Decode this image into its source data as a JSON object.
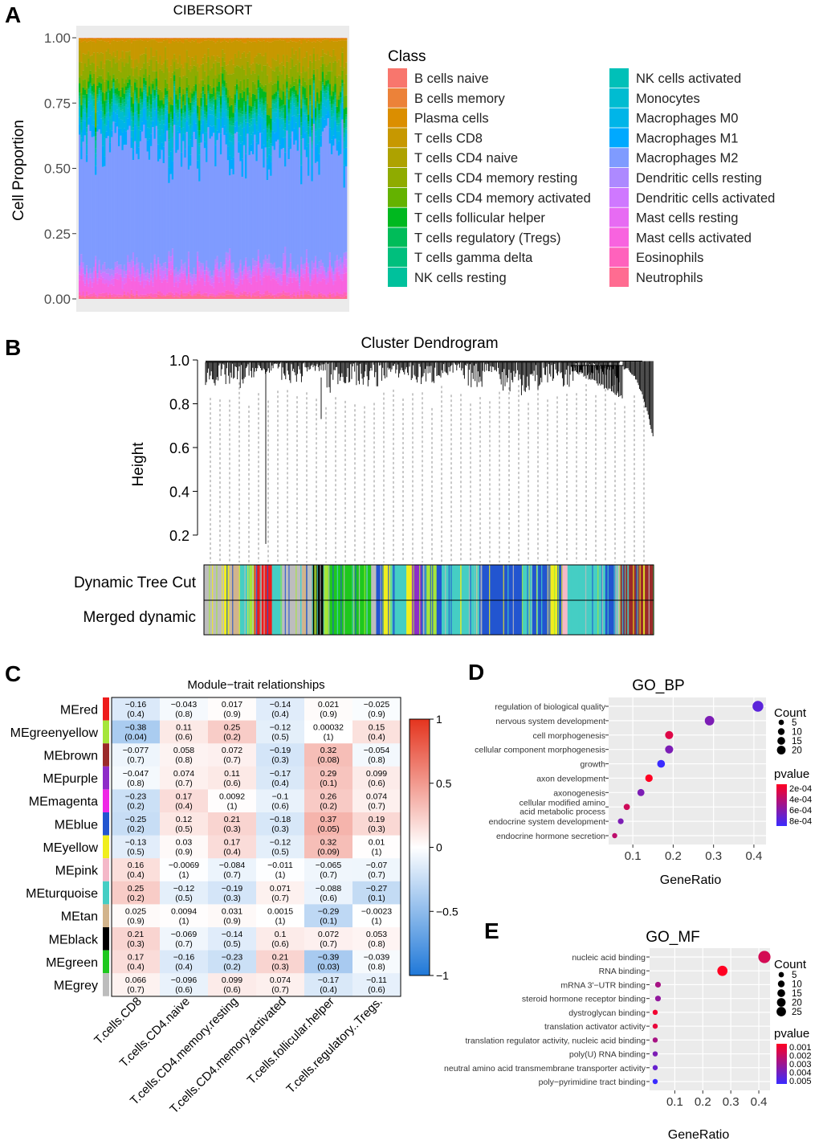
{
  "panels": {
    "a": "A",
    "b": "B",
    "c": "C",
    "d": "D",
    "e": "E"
  },
  "colors": {
    "red": "#ee1c1c",
    "greenyellow": "#a5e63a",
    "brown": "#9b2a2a",
    "purple": "#8e2cc8",
    "magenta": "#ef28e6",
    "blue": "#2255d0",
    "yellow": "#f0ee1e",
    "pink": "#f4b8c8",
    "turquoise": "#45cec4",
    "tan": "#d2b48c",
    "black": "#000000",
    "green": "#1ec81e",
    "grey": "#bdbdbd"
  },
  "chart_data": [
    {
      "type": "bar",
      "subtype": "stacked-proportion",
      "title": "CIBERSORT",
      "xlabel": "",
      "ylabel": "Cell Proportion",
      "ylim": [
        0,
        1
      ],
      "yticks": [
        "0.00",
        "0.25",
        "0.50",
        "0.75",
        "1.00"
      ],
      "legend_title": "Class",
      "legend_position": "right",
      "classes": [
        {
          "name": "B cells naive",
          "color": "#f8766d",
          "mean": 0.0
        },
        {
          "name": "B cells memory",
          "color": "#ec8239",
          "mean": 0.0
        },
        {
          "name": "Plasma cells",
          "color": "#db8e00",
          "mean": 0.01
        },
        {
          "name": "T cells CD8",
          "color": "#c79800",
          "mean": 0.06
        },
        {
          "name": "T cells CD4 naive",
          "color": "#aea200",
          "mean": 0.04
        },
        {
          "name": "T cells CD4 memory resting",
          "color": "#8fab00",
          "mean": 0.06
        },
        {
          "name": "T cells CD4 memory activated",
          "color": "#64b200",
          "mean": 0.03
        },
        {
          "name": "T cells follicular helper",
          "color": "#00b81f",
          "mean": 0.03
        },
        {
          "name": "T cells regulatory (Tregs)",
          "color": "#00bc59",
          "mean": 0.01
        },
        {
          "name": "T cells gamma delta",
          "color": "#00bf7d",
          "mean": 0.01
        },
        {
          "name": "NK cells resting",
          "color": "#00c19c",
          "mean": 0.02
        },
        {
          "name": "NK cells activated",
          "color": "#00c0b8",
          "mean": 0.01
        },
        {
          "name": "Monocytes",
          "color": "#00bcd1",
          "mean": 0.03
        },
        {
          "name": "Macrophages M0",
          "color": "#00b5e8",
          "mean": 0.04
        },
        {
          "name": "Macrophages M1",
          "color": "#00a9ff",
          "mean": 0.05
        },
        {
          "name": "Macrophages M2",
          "color": "#7f9bff",
          "mean": 0.45
        },
        {
          "name": "Dendritic cells resting",
          "color": "#ad89ff",
          "mean": 0.02
        },
        {
          "name": "Dendritic cells activated",
          "color": "#cf78ff",
          "mean": 0.02
        },
        {
          "name": "Mast cells resting",
          "color": "#e76bf3",
          "mean": 0.02
        },
        {
          "name": "Mast cells activated",
          "color": "#f863df",
          "mean": 0.05
        },
        {
          "name": "Eosinophils",
          "color": "#ff62bc",
          "mean": 0.01
        },
        {
          "name": "Neutrophils",
          "color": "#ff6c91",
          "mean": 0.01
        }
      ]
    },
    {
      "type": "dendrogram",
      "title": "Cluster Dendrogram",
      "ylabel": "Height",
      "ylim": [
        0.13,
        1.0
      ],
      "yticks": [
        "0.2",
        "0.4",
        "0.6",
        "0.8",
        "1.0"
      ],
      "row_labels": [
        "Dynamic Tree Cut",
        "Merged dynamic"
      ],
      "module_segments": [
        {
          "color": "grey",
          "fraction": 0.04
        },
        {
          "color": "yellow",
          "fraction": 0.01
        },
        {
          "color": "tan",
          "fraction": 0.02
        },
        {
          "color": "turquoise",
          "fraction": 0.02
        },
        {
          "color": "greenyellow",
          "fraction": 0.01
        },
        {
          "color": "red",
          "fraction": 0.035
        },
        {
          "color": "turquoise",
          "fraction": 0.02
        },
        {
          "color": "grey",
          "fraction": 0.04
        },
        {
          "color": "tan",
          "fraction": 0.01
        },
        {
          "color": "grey",
          "fraction": 0.01
        },
        {
          "color": "black",
          "fraction": 0.022
        },
        {
          "color": "greenyellow",
          "fraction": 0.01
        },
        {
          "color": "green",
          "fraction": 0.085
        },
        {
          "color": "grey",
          "fraction": 0.01
        },
        {
          "color": "blue",
          "fraction": 0.015
        },
        {
          "color": "yellow",
          "fraction": 0.015
        },
        {
          "color": "turquoise",
          "fraction": 0.03
        },
        {
          "color": "yellow",
          "fraction": 0.01
        },
        {
          "color": "purple",
          "fraction": 0.02
        },
        {
          "color": "blue",
          "fraction": 0.01
        },
        {
          "color": "greenyellow",
          "fraction": 0.02
        },
        {
          "color": "blue",
          "fraction": 0.01
        },
        {
          "color": "turquoise",
          "fraction": 0.075
        },
        {
          "color": "blue",
          "fraction": 0.085
        },
        {
          "color": "turquoise",
          "fraction": 0.02
        },
        {
          "color": "blue",
          "fraction": 0.03
        },
        {
          "color": "yellow",
          "fraction": 0.02
        },
        {
          "color": "blue",
          "fraction": 0.01
        },
        {
          "color": "pink",
          "fraction": 0.01
        },
        {
          "color": "turquoise",
          "fraction": 0.075
        },
        {
          "color": "blue",
          "fraction": 0.02
        },
        {
          "color": "grey",
          "fraction": 0.01
        },
        {
          "color": "brown",
          "fraction": 0.066
        }
      ]
    },
    {
      "type": "heatmap",
      "title": "Module−trait relationships",
      "rows": [
        "MEred",
        "MEgreenyellow",
        "MEbrown",
        "MEpurple",
        "MEmagenta",
        "MEblue",
        "MEyellow",
        "MEpink",
        "MEturquoise",
        "MEtan",
        "MEblack",
        "MEgreen",
        "MEgrey"
      ],
      "row_colors": [
        "red",
        "greenyellow",
        "brown",
        "purple",
        "magenta",
        "blue",
        "yellow",
        "pink",
        "turquoise",
        "tan",
        "black",
        "green",
        "grey"
      ],
      "columns": [
        "T.cells.CD8",
        "T.cells.CD4.naive",
        "T.cells.CD4.memory.resting",
        "T.cells.CD4.memory.activated",
        "T.cells.follicular.helper",
        "T.cells.regulatory..Tregs."
      ],
      "values": [
        [
          -0.16,
          -0.043,
          0.017,
          -0.14,
          0.021,
          -0.025
        ],
        [
          -0.38,
          0.11,
          0.25,
          -0.12,
          0.00032,
          0.15
        ],
        [
          -0.077,
          0.058,
          0.072,
          -0.19,
          0.32,
          -0.054
        ],
        [
          -0.047,
          0.074,
          0.11,
          -0.17,
          0.29,
          0.099
        ],
        [
          -0.23,
          0.17,
          0.0092,
          -0.1,
          0.26,
          0.074
        ],
        [
          -0.25,
          0.12,
          0.21,
          -0.18,
          0.37,
          0.19
        ],
        [
          -0.13,
          0.03,
          0.17,
          -0.12,
          0.32,
          0.01
        ],
        [
          0.16,
          -0.0069,
          -0.084,
          -0.011,
          -0.065,
          -0.07
        ],
        [
          0.25,
          -0.12,
          -0.19,
          0.071,
          -0.088,
          -0.27
        ],
        [
          0.025,
          0.0094,
          0.031,
          0.0015,
          -0.29,
          -0.0023
        ],
        [
          0.21,
          -0.069,
          -0.14,
          0.1,
          0.072,
          0.053
        ],
        [
          0.17,
          -0.16,
          -0.23,
          0.21,
          -0.39,
          -0.039
        ],
        [
          0.066,
          -0.096,
          0.099,
          0.074,
          -0.17,
          -0.11
        ]
      ],
      "cell_labels": [
        [
          [
            "−0.16",
            "(0.4)"
          ],
          [
            "−0.043",
            "(0.8)"
          ],
          [
            "0.017",
            "(0.9)"
          ],
          [
            "−0.14",
            "(0.4)"
          ],
          [
            "0.021",
            "(0.9)"
          ],
          [
            "−0.025",
            "(0.9)"
          ]
        ],
        [
          [
            "−0.38",
            "(0.04)"
          ],
          [
            "0.11",
            "(0.6)"
          ],
          [
            "0.25",
            "(0.2)"
          ],
          [
            "−0.12",
            "(0.5)"
          ],
          [
            "0.00032",
            "(1)"
          ],
          [
            "0.15",
            "(0.4)"
          ]
        ],
        [
          [
            "−0.077",
            "(0.7)"
          ],
          [
            "0.058",
            "(0.8)"
          ],
          [
            "0.072",
            "(0.7)"
          ],
          [
            "−0.19",
            "(0.3)"
          ],
          [
            "0.32",
            "(0.08)"
          ],
          [
            "−0.054",
            "(0.8)"
          ]
        ],
        [
          [
            "−0.047",
            "(0.8)"
          ],
          [
            "0.074",
            "(0.7)"
          ],
          [
            "0.11",
            "(0.6)"
          ],
          [
            "−0.17",
            "(0.4)"
          ],
          [
            "0.29",
            "(0.1)"
          ],
          [
            "0.099",
            "(0.6)"
          ]
        ],
        [
          [
            "−0.23",
            "(0.2)"
          ],
          [
            "0.17",
            "(0.4)"
          ],
          [
            "0.0092",
            "(1)"
          ],
          [
            "−0.1",
            "(0.6)"
          ],
          [
            "0.26",
            "(0.2)"
          ],
          [
            "0.074",
            "(0.7)"
          ]
        ],
        [
          [
            "−0.25",
            "(0.2)"
          ],
          [
            "0.12",
            "(0.5)"
          ],
          [
            "0.21",
            "(0.3)"
          ],
          [
            "−0.18",
            "(0.3)"
          ],
          [
            "0.37",
            "(0.05)"
          ],
          [
            "0.19",
            "(0.3)"
          ]
        ],
        [
          [
            "−0.13",
            "(0.5)"
          ],
          [
            "0.03",
            "(0.9)"
          ],
          [
            "0.17",
            "(0.4)"
          ],
          [
            "−0.12",
            "(0.5)"
          ],
          [
            "0.32",
            "(0.09)"
          ],
          [
            "0.01",
            "(1)"
          ]
        ],
        [
          [
            "0.16",
            "(0.4)"
          ],
          [
            "−0.0069",
            "(1)"
          ],
          [
            "−0.084",
            "(0.7)"
          ],
          [
            "−0.011",
            "(1)"
          ],
          [
            "−0.065",
            "(0.7)"
          ],
          [
            "−0.07",
            "(0.7)"
          ]
        ],
        [
          [
            "0.25",
            "(0.2)"
          ],
          [
            "−0.12",
            "(0.5)"
          ],
          [
            "−0.19",
            "(0.3)"
          ],
          [
            "0.071",
            "(0.7)"
          ],
          [
            "−0.088",
            "(0.6)"
          ],
          [
            "−0.27",
            "(0.1)"
          ]
        ],
        [
          [
            "0.025",
            "(0.9)"
          ],
          [
            "0.0094",
            "(1)"
          ],
          [
            "0.031",
            "(0.9)"
          ],
          [
            "0.0015",
            "(1)"
          ],
          [
            "−0.29",
            "(0.1)"
          ],
          [
            "−0.0023",
            "(1)"
          ]
        ],
        [
          [
            "0.21",
            "(0.3)"
          ],
          [
            "−0.069",
            "(0.7)"
          ],
          [
            "−0.14",
            "(0.5)"
          ],
          [
            "0.1",
            "(0.6)"
          ],
          [
            "0.072",
            "(0.7)"
          ],
          [
            "0.053",
            "(0.8)"
          ]
        ],
        [
          [
            "0.17",
            "(0.4)"
          ],
          [
            "−0.16",
            "(0.4)"
          ],
          [
            "−0.23",
            "(0.2)"
          ],
          [
            "0.21",
            "(0.3)"
          ],
          [
            "−0.39",
            "(0.03)"
          ],
          [
            "−0.039",
            "(0.8)"
          ]
        ],
        [
          [
            "0.066",
            "(0.7)"
          ],
          [
            "−0.096",
            "(0.6)"
          ],
          [
            "0.099",
            "(0.6)"
          ],
          [
            "0.074",
            "(0.7)"
          ],
          [
            "−0.17",
            "(0.4)"
          ],
          [
            "−0.11",
            "(0.6)"
          ]
        ]
      ],
      "scale_range": [
        -1,
        1
      ],
      "scale_ticks": [
        "1",
        "0.5",
        "0",
        "−0.5",
        "−1"
      ]
    },
    {
      "type": "scatter",
      "subtype": "dot-enrichment",
      "title": "GO_BP",
      "xlabel": "GeneRatio",
      "xlim": [
        0.04,
        0.43
      ],
      "xticks": [
        "0.1",
        "0.2",
        "0.3",
        "0.4"
      ],
      "terms": [
        {
          "label": [
            "regulation of biological quality"
          ],
          "ratio": 0.41,
          "count": 20,
          "pvalue": 0.0007
        },
        {
          "label": [
            "nervous system development"
          ],
          "ratio": 0.29,
          "count": 14,
          "pvalue": 0.0006
        },
        {
          "label": [
            "cell morphogenesis"
          ],
          "ratio": 0.19,
          "count": 9,
          "pvalue": 0.0003
        },
        {
          "label": [
            "cellular component morphogenesis"
          ],
          "ratio": 0.19,
          "count": 9,
          "pvalue": 0.0006
        },
        {
          "label": [
            "growth"
          ],
          "ratio": 0.17,
          "count": 8,
          "pvalue": 0.00085
        },
        {
          "label": [
            "axon development"
          ],
          "ratio": 0.14,
          "count": 7,
          "pvalue": 0.0002
        },
        {
          "label": [
            "axonogenesis"
          ],
          "ratio": 0.12,
          "count": 6,
          "pvalue": 0.0006
        },
        {
          "label": [
            "cellular modified amino",
            "acid metabolic process"
          ],
          "ratio": 0.085,
          "count": 4,
          "pvalue": 0.00035
        },
        {
          "label": [
            "endocrine system development"
          ],
          "ratio": 0.07,
          "count": 3,
          "pvalue": 0.0006
        },
        {
          "label": [
            "endocrine hormone secretion"
          ],
          "ratio": 0.055,
          "count": 2,
          "pvalue": 0.0004
        }
      ],
      "size_legend": {
        "title": "Count",
        "values": [
          5,
          10,
          15,
          20
        ],
        "labels": [
          "5",
          "10",
          "15",
          "20"
        ]
      },
      "color_legend": {
        "title": "pvalue",
        "range": [
          0.0002,
          0.0008
        ],
        "labels": [
          "2e-04",
          "4e-04",
          "6e-04",
          "8e-04"
        ]
      }
    },
    {
      "type": "scatter",
      "subtype": "dot-enrichment",
      "title": "GO_MF",
      "xlabel": "GeneRatio",
      "xlim": [
        0.01,
        0.44
      ],
      "xticks": [
        "0.1",
        "0.2",
        "0.3",
        "0.4"
      ],
      "terms": [
        {
          "label": [
            "nucleic acid binding"
          ],
          "ratio": 0.42,
          "count": 27,
          "pvalue": 0.0015
        },
        {
          "label": [
            "RNA binding"
          ],
          "ratio": 0.27,
          "count": 17,
          "pvalue": 0.0002
        },
        {
          "label": [
            "mRNA 3'−UTR binding"
          ],
          "ratio": 0.04,
          "count": 3,
          "pvalue": 0.0025
        },
        {
          "label": [
            "steroid hormone receptor binding"
          ],
          "ratio": 0.04,
          "count": 3,
          "pvalue": 0.003
        },
        {
          "label": [
            "dystroglycan binding"
          ],
          "ratio": 0.03,
          "count": 2,
          "pvalue": 0.0008
        },
        {
          "label": [
            "translation activator activity"
          ],
          "ratio": 0.03,
          "count": 2,
          "pvalue": 0.001
        },
        {
          "label": [
            "translation regulator activity, nucleic acid binding"
          ],
          "ratio": 0.03,
          "count": 2,
          "pvalue": 0.0025
        },
        {
          "label": [
            "poly(U) RNA binding"
          ],
          "ratio": 0.03,
          "count": 2,
          "pvalue": 0.0035
        },
        {
          "label": [
            "neutral amino acid transmembrane transporter activity"
          ],
          "ratio": 0.03,
          "count": 2,
          "pvalue": 0.004
        },
        {
          "label": [
            "poly−pyrimidine tract binding"
          ],
          "ratio": 0.03,
          "count": 2,
          "pvalue": 0.005
        }
      ],
      "size_legend": {
        "title": "Count",
        "values": [
          5,
          10,
          15,
          20,
          25
        ],
        "labels": [
          "5",
          "10",
          "15",
          "20",
          "25"
        ]
      },
      "color_legend": {
        "title": "pvalue",
        "range": [
          0.0005,
          0.005
        ],
        "labels": [
          "0.001",
          "0.002",
          "0.003",
          "0.004",
          "0.005"
        ]
      }
    }
  ]
}
